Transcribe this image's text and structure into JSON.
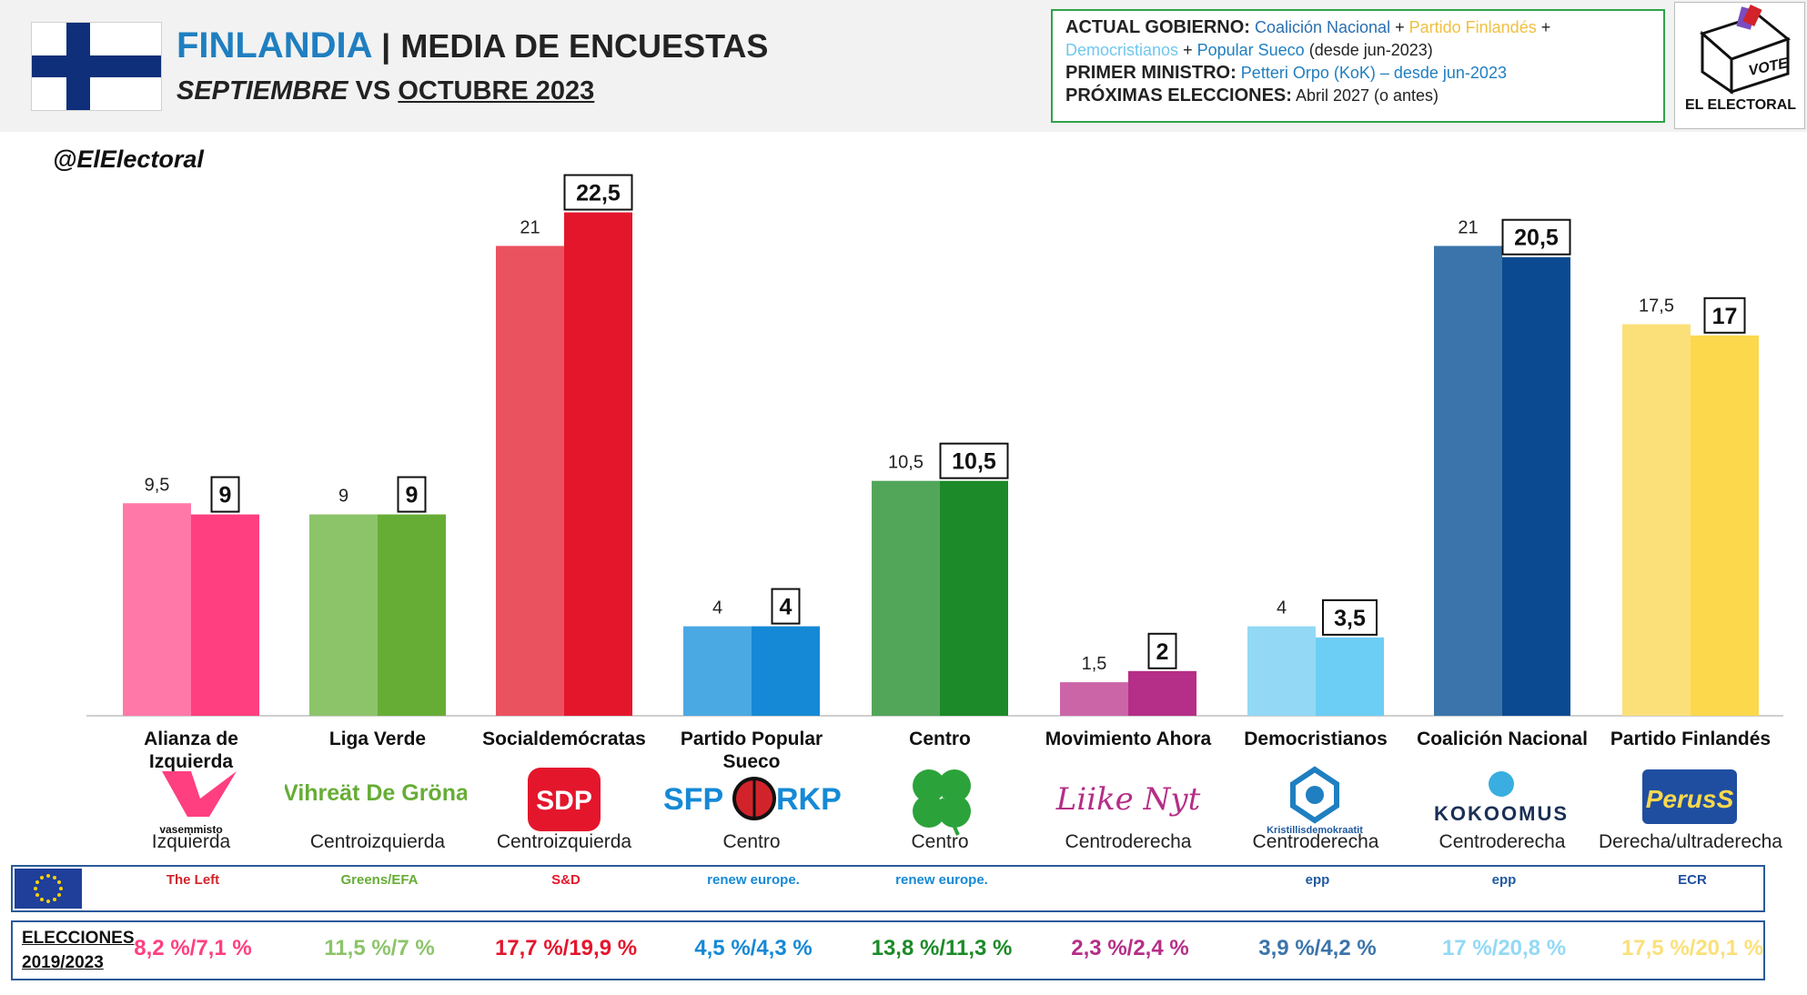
{
  "header": {
    "country": "FINLANDIA",
    "separator": "|",
    "title_rest": "MEDIA DE ENCUESTAS",
    "subtitle_a": "SEPTIEMBRE",
    "subtitle_vs": "VS",
    "subtitle_b": "OCTUBRE 2023"
  },
  "info": {
    "gov_label": "ACTUAL GOBIERNO:",
    "gov_p1": "Coalición Nacional",
    "plus": "+",
    "gov_p2": "Partido Finlandés",
    "gov_p3": "Democristianos",
    "gov_p4": "Popular Sueco",
    "gov_since": "(desde jun-2023)",
    "pm_label": "PRIMER MINISTRO:",
    "pm_value": "Petteri Orpo (KoK) – desde jun-2023",
    "next_label": "PRÓXIMAS ELECCIONES:",
    "next_value": "Abril 2027 (o antes)"
  },
  "brand": {
    "vote": "VOTE",
    "name": "EL ELECTORAL"
  },
  "handle": "@ElElectoral",
  "chart_data": {
    "type": "bar",
    "title": "MEDIA DE ENCUESTAS",
    "categories": [
      "Alianza de Izquierda",
      "Liga Verde",
      "Socialdemócratas",
      "Partido Popular Sueco",
      "Centro",
      "Movimiento Ahora",
      "Democristianos",
      "Coalición Nacional",
      "Partido Finlandés"
    ],
    "series": [
      {
        "values": [
          9.5,
          9,
          21,
          4,
          10.5,
          1.5,
          4,
          21,
          17.5
        ],
        "labels": [
          "9,5",
          "9",
          "21",
          "4",
          "10,5",
          "1,5",
          "4",
          "21",
          "17,5"
        ]
      },
      {
        "values": [
          9,
          9,
          22.5,
          4,
          10.5,
          2,
          3.5,
          20.5,
          17
        ],
        "labels": [
          "9",
          "9",
          "22,5",
          "4",
          "10,5",
          "2",
          "3,5",
          "20,5",
          "17"
        ]
      }
    ],
    "colors_sep": [
      "#ff78a8",
      "#8cc46a",
      "#eb5260",
      "#4aa9e3",
      "#52a65a",
      "#cb65a8",
      "#93d9f5",
      "#3b74aa",
      "#fbe07a"
    ],
    "colors_oct": [
      "#ff3f7f",
      "#66ad36",
      "#e4162c",
      "#1589d6",
      "#1c8a28",
      "#b52e87",
      "#6ccdf5",
      "#0b4a90",
      "#fbd84c"
    ],
    "ylim": [
      0,
      23
    ]
  },
  "parties": [
    {
      "name": "Alianza de Izquierda",
      "logo_text": "vasemmisto",
      "ideology": "Izquierda",
      "elections": "8,2 %/7,1 %",
      "color": "#ff3f7f",
      "eu_group": "The Left"
    },
    {
      "name": "Liga Verde",
      "logo_text": "Vihreät De Gröna",
      "ideology": "Centroizquierda",
      "elections": "11,5 %/7 %",
      "color": "#8cc46a",
      "eu_group": "Greens/EFA"
    },
    {
      "name": "Socialdemócratas",
      "logo_text": "SDP",
      "ideology": "Centroizquierda",
      "elections": "17,7 %/19,9 %",
      "color": "#e4162c",
      "eu_group": "S&D"
    },
    {
      "name": "Partido Popular Sueco",
      "logo_text": "SFP RKP",
      "ideology": "Centro",
      "elections": "4,5 %/4,3 %",
      "color": "#1589d6",
      "eu_group": "renew europe."
    },
    {
      "name": "Centro",
      "logo_text": "clover",
      "ideology": "Centro",
      "elections": "13,8 %/11,3 %",
      "color": "#1c8a28",
      "eu_group": "renew europe."
    },
    {
      "name": "Movimiento Ahora",
      "logo_text": "Liike Nyt",
      "ideology": "Centroderecha",
      "elections": "2,3 %/2,4 %",
      "color": "#b52e87",
      "eu_group": ""
    },
    {
      "name": "Democristianos",
      "logo_text": "Kristillisdemokraatit",
      "ideology": "Centroderecha",
      "elections": "3,9 %/4,2 %",
      "color": "#3b74aa",
      "eu_group": "epp"
    },
    {
      "name": "Coalición Nacional",
      "logo_text": "KOKOOMUS",
      "ideology": "Centroderecha",
      "elections": "17 %/20,8 %",
      "color": "#93d9f5",
      "eu_group": "epp"
    },
    {
      "name": "Partido Finlandés",
      "logo_text": "PerusS",
      "ideology": "Derecha/ultraderecha",
      "elections": "17,5 %/20,1 %",
      "color": "#fbe07a",
      "eu_group": "ECR"
    }
  ],
  "elections_label_1": "ELECCIONES",
  "elections_label_2": "2019/2023"
}
